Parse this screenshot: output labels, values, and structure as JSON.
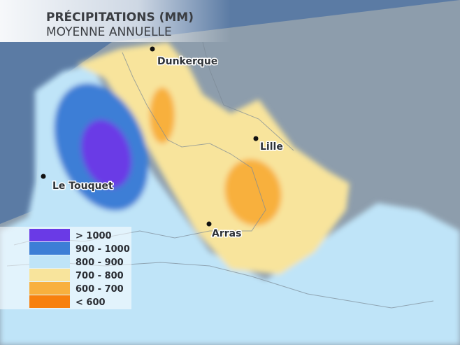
{
  "header": {
    "title": "PRÉCIPITATIONS (MM)",
    "subtitle": "MOYENNE ANNUELLE"
  },
  "cities": [
    {
      "name": "Dunkerque"
    },
    {
      "name": "Lille"
    },
    {
      "name": "Le Touquet"
    },
    {
      "name": "Arras"
    }
  ],
  "legend": {
    "items": [
      {
        "label": "> 1000",
        "color": "#6a3ae6"
      },
      {
        "label": "900 - 1000",
        "color": "#3d7ed6"
      },
      {
        "label": "800 - 900",
        "color": "#bfe4f8"
      },
      {
        "label": "700 - 800",
        "color": "#f8e49c"
      },
      {
        "label": "600 - 700",
        "color": "#f8b03e"
      },
      {
        "label": "< 600",
        "color": "#f8800e"
      }
    ]
  }
}
